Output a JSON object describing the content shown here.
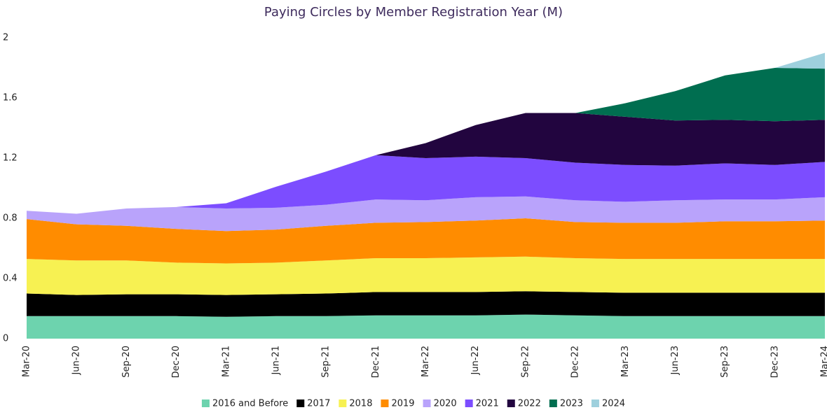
{
  "chart_data": {
    "type": "stacked_area",
    "title": "Paying Circles by Member Registration Year (M)",
    "categories": [
      "Mar-20",
      "Jun-20",
      "Sep-20",
      "Dec-20",
      "Mar-21",
      "Jun-21",
      "Sep-21",
      "Dec-21",
      "Mar-22",
      "Jun-22",
      "Sep-22",
      "Dec-22",
      "Mar-23",
      "Jun-23",
      "Sep-23",
      "Dec-23",
      "Mar-24"
    ],
    "ylim": [
      0,
      2
    ],
    "yticks": [
      0,
      0.4,
      0.8,
      1.2,
      1.6,
      2
    ],
    "grid": false,
    "legend": "bottom",
    "series": [
      {
        "name": "2016 and Before",
        "color": "#6dd3ae",
        "values": [
          0.15,
          0.15,
          0.15,
          0.15,
          0.145,
          0.15,
          0.15,
          0.155,
          0.155,
          0.155,
          0.16,
          0.155,
          0.15,
          0.15,
          0.15,
          0.15,
          0.15
        ]
      },
      {
        "name": "2017",
        "color": "#000000",
        "values": [
          0.15,
          0.14,
          0.145,
          0.145,
          0.145,
          0.145,
          0.15,
          0.155,
          0.155,
          0.155,
          0.155,
          0.155,
          0.155,
          0.155,
          0.155,
          0.155,
          0.155
        ]
      },
      {
        "name": "2018",
        "color": "#f7f152",
        "values": [
          0.23,
          0.23,
          0.225,
          0.21,
          0.21,
          0.21,
          0.22,
          0.225,
          0.225,
          0.23,
          0.23,
          0.225,
          0.225,
          0.225,
          0.225,
          0.225,
          0.225
        ]
      },
      {
        "name": "2019",
        "color": "#ff8c00",
        "values": [
          0.265,
          0.24,
          0.23,
          0.225,
          0.215,
          0.22,
          0.23,
          0.235,
          0.24,
          0.245,
          0.255,
          0.24,
          0.24,
          0.24,
          0.25,
          0.25,
          0.255
        ]
      },
      {
        "name": "2020",
        "color": "#b9a3fb",
        "values": [
          0.055,
          0.07,
          0.115,
          0.145,
          0.15,
          0.145,
          0.14,
          0.155,
          0.145,
          0.155,
          0.145,
          0.145,
          0.14,
          0.15,
          0.145,
          0.145,
          0.155
        ]
      },
      {
        "name": "2021",
        "color": "#7c4dff",
        "values": [
          0,
          0,
          0,
          0,
          0.035,
          0.14,
          0.22,
          0.295,
          0.28,
          0.27,
          0.255,
          0.25,
          0.245,
          0.23,
          0.24,
          0.23,
          0.235
        ]
      },
      {
        "name": "2022",
        "color": "#22053f",
        "values": [
          0,
          0,
          0,
          0,
          0,
          0,
          0,
          0,
          0.1,
          0.21,
          0.3,
          0.33,
          0.32,
          0.3,
          0.29,
          0.29,
          0.28
        ]
      },
      {
        "name": "2023",
        "color": "#006e50",
        "values": [
          0,
          0,
          0,
          0,
          0,
          0,
          0,
          0,
          0,
          0,
          0,
          0,
          0.09,
          0.195,
          0.295,
          0.355,
          0.34
        ]
      },
      {
        "name": "2024",
        "color": "#9ed0dd",
        "values": [
          0,
          0,
          0,
          0,
          0,
          0,
          0,
          0,
          0,
          0,
          0,
          0,
          0,
          0,
          0,
          0,
          0.105
        ]
      }
    ]
  }
}
